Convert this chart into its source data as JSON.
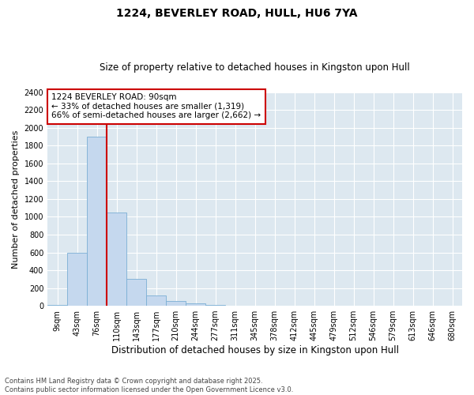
{
  "title": "1224, BEVERLEY ROAD, HULL, HU6 7YA",
  "subtitle": "Size of property relative to detached houses in Kingston upon Hull",
  "xlabel": "Distribution of detached houses by size in Kingston upon Hull",
  "ylabel": "Number of detached properties",
  "categories": [
    "9sqm",
    "43sqm",
    "76sqm",
    "110sqm",
    "143sqm",
    "177sqm",
    "210sqm",
    "244sqm",
    "277sqm",
    "311sqm",
    "345sqm",
    "378sqm",
    "412sqm",
    "445sqm",
    "479sqm",
    "512sqm",
    "546sqm",
    "579sqm",
    "613sqm",
    "646sqm",
    "680sqm"
  ],
  "values": [
    10,
    600,
    1900,
    1050,
    300,
    120,
    55,
    30,
    8,
    4,
    2,
    2,
    1,
    0,
    0,
    0,
    0,
    0,
    0,
    0,
    0
  ],
  "bar_color": "#c5d8ee",
  "bar_edge_color": "#7aaed4",
  "plot_bg_color": "#dde8f0",
  "grid_color": "#ffffff",
  "property_line_color": "#cc0000",
  "property_line_x": 2.5,
  "annotation_text": "1224 BEVERLEY ROAD: 90sqm\n← 33% of detached houses are smaller (1,319)\n66% of semi-detached houses are larger (2,662) →",
  "annotation_box_color": "#cc0000",
  "ylim": [
    0,
    2400
  ],
  "yticks": [
    0,
    200,
    400,
    600,
    800,
    1000,
    1200,
    1400,
    1600,
    1800,
    2000,
    2200,
    2400
  ],
  "footnote": "Contains HM Land Registry data © Crown copyright and database right 2025.\nContains public sector information licensed under the Open Government Licence v3.0.",
  "title_fontsize": 10,
  "subtitle_fontsize": 8.5,
  "xlabel_fontsize": 8.5,
  "ylabel_fontsize": 8,
  "tick_fontsize": 7,
  "annotation_fontsize": 7.5,
  "footnote_fontsize": 6
}
